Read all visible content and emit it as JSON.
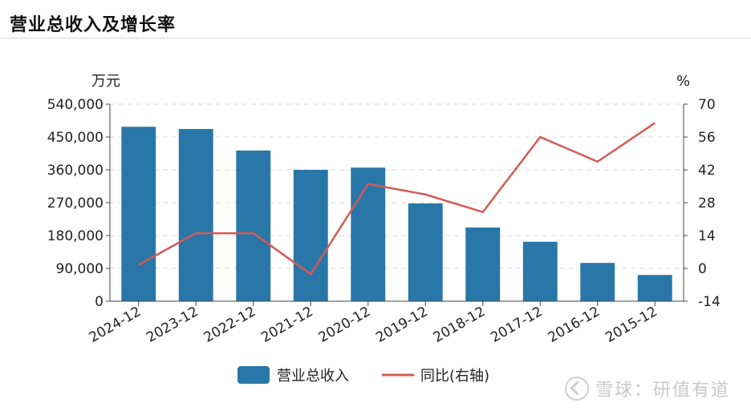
{
  "page": {
    "title": "营业总收入及增长率"
  },
  "watermark": {
    "text": "雪球：研值有道",
    "icon": "snowball-logo-icon"
  },
  "chart_data": {
    "type": "bar+line",
    "categories": [
      "2024-12",
      "2023-12",
      "2022-12",
      "2021-12",
      "2020-12",
      "2019-12",
      "2018-12",
      "2017-12",
      "2016-12",
      "2015-12"
    ],
    "series": [
      {
        "name": "营业总收入",
        "type": "bar",
        "axis": "left",
        "color": "#2877a8",
        "values": [
          478000,
          472000,
          413000,
          360000,
          366000,
          268000,
          202000,
          163000,
          105000,
          72000
        ]
      },
      {
        "name": "同比(右轴)",
        "type": "line",
        "axis": "right",
        "color": "#d45a55",
        "values": [
          1.5,
          15,
          15,
          -2.5,
          36,
          31.5,
          24,
          56,
          45.5,
          62
        ]
      }
    ],
    "left_axis": {
      "unit": "万元",
      "min": 0,
      "max": 540000,
      "ticks": [
        "0",
        "90,000",
        "180,000",
        "270,000",
        "360,000",
        "450,000",
        "540,000"
      ]
    },
    "right_axis": {
      "unit": "%",
      "min": -14,
      "max": 70,
      "ticks": [
        "-14",
        "0",
        "14",
        "28",
        "42",
        "56",
        "70"
      ]
    },
    "grid": "dashed horizontal",
    "legend_position": "bottom-center"
  }
}
